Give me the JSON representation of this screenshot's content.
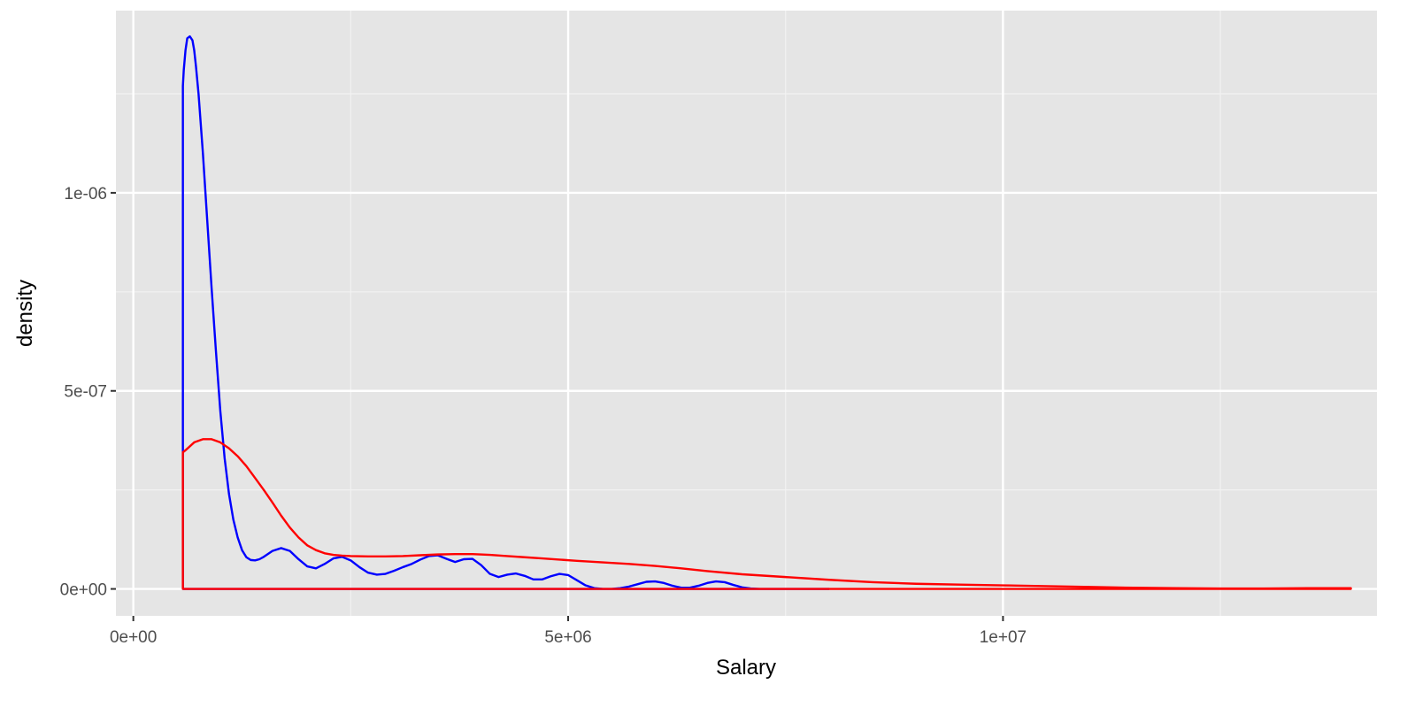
{
  "chart_data": {
    "type": "line",
    "title": "",
    "xlabel": "Salary",
    "ylabel": "density",
    "xlim": [
      -200000,
      14300000
    ],
    "ylim": [
      -6.8e-08,
      1.46e-06
    ],
    "grid": true,
    "legend": "none",
    "background": "#e5e5e5",
    "x_ticks": [
      {
        "value": 0,
        "label": "0e+00"
      },
      {
        "value": 5000000,
        "label": "5e+06"
      },
      {
        "value": 10000000,
        "label": "1e+07"
      }
    ],
    "x_minor": [
      2500000,
      7500000,
      12500000
    ],
    "y_ticks": [
      {
        "value": 0,
        "label": "0e+00"
      },
      {
        "value": 5e-07,
        "label": "5e-07"
      },
      {
        "value": 1e-06,
        "label": "1e-06"
      }
    ],
    "y_minor": [
      2.5e-07,
      7.5e-07,
      1.25e-06
    ],
    "series": [
      {
        "color": "#0000ff",
        "closed": true,
        "x": [
          570000,
          580000,
          600000,
          620000,
          650000,
          680000,
          700000,
          720000,
          750000,
          800000,
          850000,
          900000,
          950000,
          1000000,
          1050000,
          1100000,
          1150000,
          1200000,
          1250000,
          1300000,
          1350000,
          1400000,
          1450000,
          1500000,
          1600000,
          1700000,
          1800000,
          1900000,
          2000000,
          2100000,
          2200000,
          2300000,
          2400000,
          2500000,
          2600000,
          2700000,
          2800000,
          2900000,
          3000000,
          3100000,
          3200000,
          3300000,
          3400000,
          3500000,
          3600000,
          3700000,
          3800000,
          3900000,
          4000000,
          4100000,
          4200000,
          4300000,
          4400000,
          4500000,
          4600000,
          4700000,
          4800000,
          4900000,
          5000000,
          5100000,
          5200000,
          5300000,
          5400000,
          5500000,
          5600000,
          5700000,
          5800000,
          5900000,
          6000000,
          6100000,
          6200000,
          6300000,
          6400000,
          6500000,
          6600000,
          6700000,
          6800000,
          6900000,
          7000000,
          7100000,
          7200000,
          7400000,
          7700000,
          8000000
        ],
        "y": [
          1.27e-06,
          1.31e-06,
          1.36e-06,
          1.39e-06,
          1.395e-06,
          1.385e-06,
          1.36e-06,
          1.32e-06,
          1.25e-06,
          1.1e-06,
          9.3e-07,
          7.6e-07,
          6e-07,
          4.5e-07,
          3.3e-07,
          2.4e-07,
          1.75e-07,
          1.3e-07,
          9.8e-08,
          8e-08,
          7.3e-08,
          7.2e-08,
          7.5e-08,
          8.1e-08,
          9.6e-08,
          1.03e-07,
          9.6e-08,
          7.5e-08,
          5.7e-08,
          5.2e-08,
          6.3e-08,
          7.7e-08,
          8.1e-08,
          7.2e-08,
          5.5e-08,
          4.1e-08,
          3.6e-08,
          3.8e-08,
          4.6e-08,
          5.5e-08,
          6.3e-08,
          7.4e-08,
          8.3e-08,
          8.5e-08,
          7.6e-08,
          6.8e-08,
          7.5e-08,
          7.6e-08,
          6e-08,
          3.8e-08,
          3e-08,
          3.6e-08,
          3.9e-08,
          3.3e-08,
          2.4e-08,
          2.4e-08,
          3.2e-08,
          3.8e-08,
          3.5e-08,
          2.2e-08,
          9e-09,
          2e-09,
          0.0,
          0.0,
          2e-09,
          6e-09,
          1.2e-08,
          1.8e-08,
          1.9e-08,
          1.5e-08,
          8e-09,
          3e-09,
          3e-09,
          8e-09,
          1.5e-08,
          1.9e-08,
          1.7e-08,
          1e-08,
          4e-09,
          1e-09,
          0.0,
          0.0,
          0.0,
          0.0
        ]
      },
      {
        "color": "#ff0000",
        "closed": true,
        "x": [
          570000,
          600000,
          700000,
          800000,
          900000,
          1000000,
          1100000,
          1200000,
          1300000,
          1400000,
          1500000,
          1600000,
          1700000,
          1800000,
          1900000,
          2000000,
          2100000,
          2200000,
          2300000,
          2400000,
          2500000,
          2700000,
          2900000,
          3100000,
          3300000,
          3500000,
          3700000,
          3900000,
          4100000,
          4300000,
          4500000,
          4700000,
          4900000,
          5100000,
          5400000,
          5700000,
          6000000,
          6300000,
          6600000,
          7000000,
          7500000,
          8000000,
          8500000,
          9000000,
          9500000,
          10000000,
          10500000,
          11000000,
          11500000,
          12000000,
          12500000,
          13000000,
          13500000,
          14000000
        ],
        "y": [
          3.45e-07,
          3.5e-07,
          3.7e-07,
          3.78e-07,
          3.78e-07,
          3.7e-07,
          3.55e-07,
          3.35e-07,
          3.1e-07,
          2.8e-07,
          2.5e-07,
          2.18e-07,
          1.85e-07,
          1.55e-07,
          1.3e-07,
          1.1e-07,
          9.8e-08,
          9e-08,
          8.6e-08,
          8.4e-08,
          8.3e-08,
          8.2e-08,
          8.2e-08,
          8.3e-08,
          8.5e-08,
          8.7e-08,
          8.8e-08,
          8.8e-08,
          8.6e-08,
          8.3e-08,
          8e-08,
          7.7e-08,
          7.4e-08,
          7.1e-08,
          6.7e-08,
          6.3e-08,
          5.8e-08,
          5.2e-08,
          4.5e-08,
          3.7e-08,
          3e-08,
          2.3e-08,
          1.7e-08,
          1.3e-08,
          1.1e-08,
          9e-09,
          7e-09,
          5e-09,
          3e-09,
          2e-09,
          1e-09,
          1e-09,
          2e-09,
          2e-09
        ]
      }
    ]
  }
}
